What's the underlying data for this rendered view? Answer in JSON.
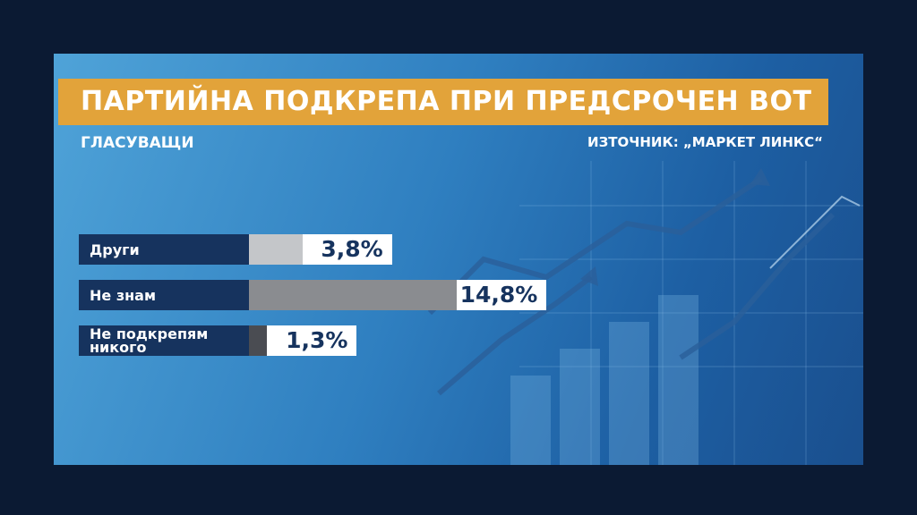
{
  "chart_data": {
    "type": "bar",
    "orientation": "horizontal",
    "title": "ПАРТИЙНА ПОДКРЕПА ПРИ ПРЕДСРОЧЕН ВОТ",
    "subtitle": "ГЛАСУВАЩИ",
    "source": "ИЗТОЧНИК: „МАРКЕТ ЛИНКС“",
    "categories": [
      "Други",
      "Не знам",
      "Не подкрепям никого"
    ],
    "values": [
      3.8,
      14.8,
      1.3
    ],
    "value_labels": [
      "3,8%",
      "14,8%",
      "1,3%"
    ],
    "colors": [
      "#c4c6c9",
      "#8a8c90",
      "#4a4c52"
    ]
  }
}
